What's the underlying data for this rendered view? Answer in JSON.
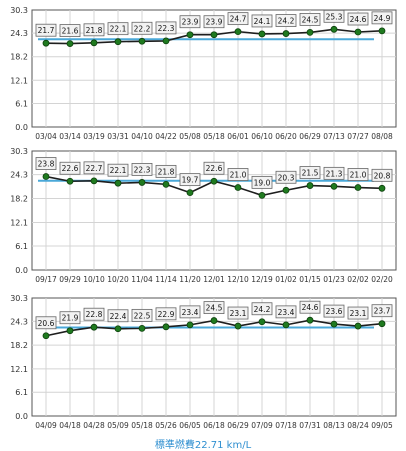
{
  "footer": {
    "text": "標準燃費22.71 km/L"
  },
  "colors": {
    "line": "#1e1e1e",
    "marker": "#1f7a1f",
    "reference": "#4aa8d8",
    "grid": "#d4d4d4",
    "axis": "#555555",
    "label_box_fill": "#f2f2f2",
    "label_box_stroke": "#666666"
  },
  "chart_data": [
    {
      "type": "line",
      "categories": [
        "03/04",
        "03/14",
        "03/19",
        "03/31",
        "04/10",
        "04/22",
        "05/08",
        "05/18",
        "06/01",
        "06/10",
        "06/20",
        "06/29",
        "07/13",
        "07/27",
        "08/08"
      ],
      "series": [
        {
          "values": [
            21.7,
            21.6,
            21.8,
            22.1,
            22.2,
            22.3,
            23.9,
            23.9,
            24.7,
            24.1,
            24.2,
            24.5,
            25.3,
            24.6,
            24.9
          ]
        }
      ],
      "reference_line": {
        "value": 22.71
      },
      "yticks": [
        "0.0",
        "6.1",
        "12.1",
        "18.2",
        "24.3",
        "30.3"
      ],
      "ylim": [
        0,
        30.3
      ],
      "grid": true
    },
    {
      "type": "line",
      "categories": [
        "09/17",
        "09/29",
        "10/10",
        "10/20",
        "11/04",
        "11/14",
        "11/20",
        "12/01",
        "12/10",
        "12/19",
        "01/02",
        "01/15",
        "01/23",
        "02/02",
        "02/20"
      ],
      "series": [
        {
          "values": [
            23.8,
            22.6,
            22.7,
            22.1,
            22.3,
            21.8,
            19.7,
            22.6,
            21.0,
            19.0,
            20.3,
            21.5,
            21.3,
            21.0,
            20.8
          ]
        }
      ],
      "reference_line": {
        "value": 22.71
      },
      "yticks": [
        "0.0",
        "6.1",
        "12.1",
        "18.2",
        "24.3",
        "30.3"
      ],
      "ylim": [
        0,
        30.3
      ],
      "grid": true
    },
    {
      "type": "line",
      "categories": [
        "04/09",
        "04/18",
        "04/28",
        "05/09",
        "05/18",
        "05/26",
        "06/05",
        "06/18",
        "06/29",
        "07/09",
        "07/18",
        "07/31",
        "08/13",
        "08/24",
        "09/05"
      ],
      "series": [
        {
          "values": [
            20.6,
            21.9,
            22.8,
            22.4,
            22.5,
            22.9,
            23.4,
            24.5,
            23.1,
            24.2,
            23.4,
            24.6,
            23.6,
            23.1,
            23.7
          ]
        }
      ],
      "reference_line": {
        "value": 22.71
      },
      "yticks": [
        "0.0",
        "6.1",
        "12.1",
        "18.2",
        "24.3",
        "30.3"
      ],
      "ylim": [
        0,
        30.3
      ],
      "grid": true
    }
  ]
}
